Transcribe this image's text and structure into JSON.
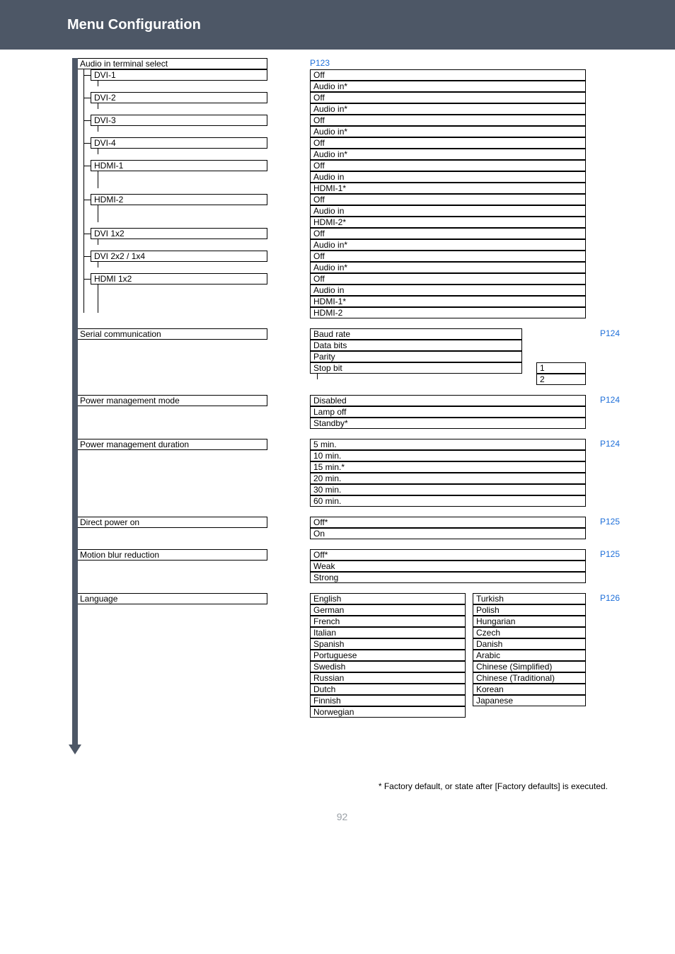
{
  "header": {
    "title": "Menu Configuration"
  },
  "audio_terminal": {
    "label": "Audio in terminal select",
    "pref": "P123",
    "items": [
      {
        "name": "DVI-1",
        "opts": [
          "Off",
          "Audio in*"
        ]
      },
      {
        "name": "DVI-2",
        "opts": [
          "Off",
          "Audio in*"
        ]
      },
      {
        "name": "DVI-3",
        "opts": [
          "Off",
          "Audio in*"
        ]
      },
      {
        "name": "DVI-4",
        "opts": [
          "Off",
          "Audio in*"
        ]
      },
      {
        "name": "HDMI-1",
        "opts": [
          "Off",
          "Audio in",
          "HDMI-1*"
        ]
      },
      {
        "name": "HDMI-2",
        "opts": [
          "Off",
          "Audio in",
          "HDMI-2*"
        ]
      },
      {
        "name": "DVI 1x2",
        "opts": [
          "Off",
          "Audio in*"
        ]
      },
      {
        "name": "DVI 2x2 / 1x4",
        "opts": [
          "Off",
          "Audio in*"
        ]
      },
      {
        "name": "HDMI 1x2",
        "opts": [
          "Off",
          "Audio in",
          "HDMI-1*",
          "HDMI-2"
        ]
      }
    ]
  },
  "serial": {
    "label": "Serial communication",
    "pref": "P124",
    "opts": [
      "Baud rate",
      "Data bits",
      "Parity",
      "Stop bit"
    ],
    "stopbit": [
      "1",
      "2"
    ]
  },
  "power_mode": {
    "label": "Power management mode",
    "pref": "P124",
    "opts": [
      "Disabled",
      "Lamp off",
      "Standby*"
    ]
  },
  "power_dur": {
    "label": "Power management duration",
    "pref": "P124",
    "opts": [
      "5 min.",
      "10 min.",
      "15 min.*",
      "20 min.",
      "30 min.",
      "60 min."
    ]
  },
  "direct_power": {
    "label": "Direct power on",
    "pref": "P125",
    "opts": [
      "Off*",
      "On"
    ]
  },
  "motion_blur": {
    "label": "Motion blur reduction",
    "pref": "P125",
    "opts": [
      "Off*",
      "Weak",
      "Strong"
    ]
  },
  "language": {
    "label": "Language",
    "pref": "P126",
    "col1": [
      "English",
      "German",
      "French",
      "Italian",
      "Spanish",
      "Portuguese",
      "Swedish",
      "Russian",
      "Dutch",
      "Finnish",
      "Norwegian"
    ],
    "col2": [
      "Turkish",
      "Polish",
      "Hungarian",
      "Czech",
      "Danish",
      "Arabic",
      "Chinese (Simplified)",
      "Chinese (Traditional)",
      "Korean",
      "Japanese"
    ]
  },
  "footnote": "*  Factory default, or state after [Factory defaults] is executed.",
  "pageno": "92",
  "colors": {
    "header_bg": "#4d5766",
    "link": "#1e6fd9",
    "pageno": "#9aa0a6"
  }
}
